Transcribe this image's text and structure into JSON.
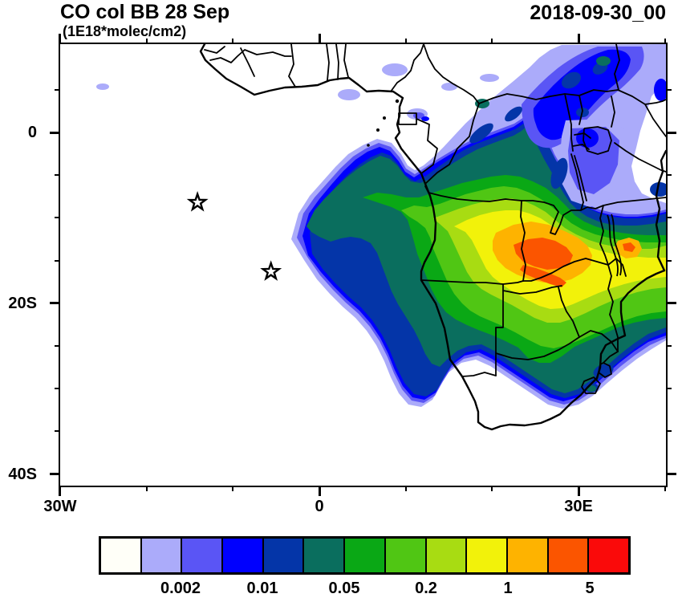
{
  "header": {
    "title": "CO col BB 28 Sep",
    "units": "(1E18*molec/cm2)",
    "datetime": "2018-09-30_00"
  },
  "chart_data": {
    "type": "heatmap",
    "title": "CO col BB 28 Sep",
    "units_label": "(1E18*molec/cm2)",
    "timestamp_label": "2018-09-30_00",
    "field": "CO column, biomass burning, filled contours over Africa",
    "extent": {
      "lon_min": -30,
      "lon_max": 40,
      "lat_min": -41.7,
      "lat_max": 10.3
    },
    "grid": false,
    "x_axis": {
      "major_ticks": [
        {
          "lon": -30,
          "label": "30W"
        },
        {
          "lon": 0,
          "label": "0"
        },
        {
          "lon": 30,
          "label": "30E"
        }
      ],
      "minor_ticks_lon": [
        -20,
        -10,
        10,
        20,
        40
      ]
    },
    "y_axis": {
      "major_ticks": [
        {
          "lat": 0,
          "label": "0"
        },
        {
          "lat": -20,
          "label": "20S"
        },
        {
          "lat": -40,
          "label": "40S"
        }
      ],
      "minor_ticks_lat": [
        5,
        -5,
        -10,
        -15,
        -25,
        -30,
        -35
      ]
    },
    "colorbar": {
      "n_cells": 13,
      "palette": [
        "#FFFFF8",
        "#ABABFA",
        "#5A55F5",
        "#0000FE",
        "#0435A8",
        "#0A6E5E",
        "#0AA815",
        "#50C614",
        "#A8DC12",
        "#F2F20A",
        "#FEB300",
        "#FB5500",
        "#FA0A0A"
      ],
      "labels": [
        {
          "text": "0.002",
          "boundary": 2
        },
        {
          "text": "0.01",
          "boundary": 4
        },
        {
          "text": "0.05",
          "boundary": 6
        },
        {
          "text": "0.2",
          "boundary": 8
        },
        {
          "text": "1",
          "boundary": 10
        },
        {
          "text": "5",
          "boundary": 12
        }
      ]
    },
    "markers": [
      {
        "type": "open-star",
        "lon": -14.1,
        "lat": -8.2
      },
      {
        "type": "open-star",
        "lon": -5.6,
        "lat": -16.3
      }
    ],
    "notes": "Plume maximum (orange, 1-5 range) centered over Zambia ~25-30E, 12-15S; blue halo extends west over the Atlantic and northeast toward East Africa."
  }
}
